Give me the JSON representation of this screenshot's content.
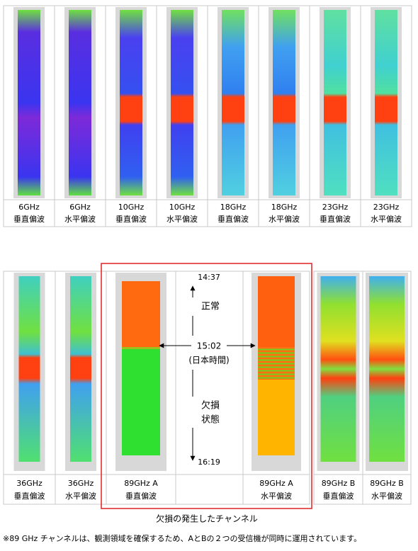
{
  "top_row": {
    "cells": [
      {
        "line1": "6GHz",
        "line2": "垂直偏波"
      },
      {
        "line1": "6GHz",
        "line2": "水平偏波"
      },
      {
        "line1": "10GHz",
        "line2": "垂直偏波"
      },
      {
        "line1": "10GHz",
        "line2": "水平偏波"
      },
      {
        "line1": "18GHz",
        "line2": "垂直偏波"
      },
      {
        "line1": "18GHz",
        "line2": "水平偏波"
      },
      {
        "line1": "23GHz",
        "line2": "垂直偏波"
      },
      {
        "line1": "23GHz",
        "line2": "水平偏波"
      }
    ]
  },
  "bottom_row": {
    "cells": [
      {
        "line1": "36GHz",
        "line2": "垂直偏波"
      },
      {
        "line1": "36GHz",
        "line2": "水平偏波"
      },
      {
        "line1": "89GHz A",
        "line2": "垂直偏波"
      },
      {
        "line1": "89GHz A",
        "line2": "水平偏波"
      },
      {
        "line1": "89GHz B",
        "line2": "垂直偏波"
      },
      {
        "line1": "89GHz B",
        "line2": "水平偏波"
      }
    ]
  },
  "timeline": {
    "start": "14:37",
    "normal": "正常",
    "event_time": "15:02",
    "timezone": "(日本時間)",
    "missing_line1": "欠損",
    "missing_line2": "状態",
    "end": "16:19"
  },
  "highlight_caption": "欠損の発生したチャンネル",
  "footnote": "※89 GHz チャンネルは、観測領域を確保するため、AとBの２つの受信機が同時に運用されています。"
}
